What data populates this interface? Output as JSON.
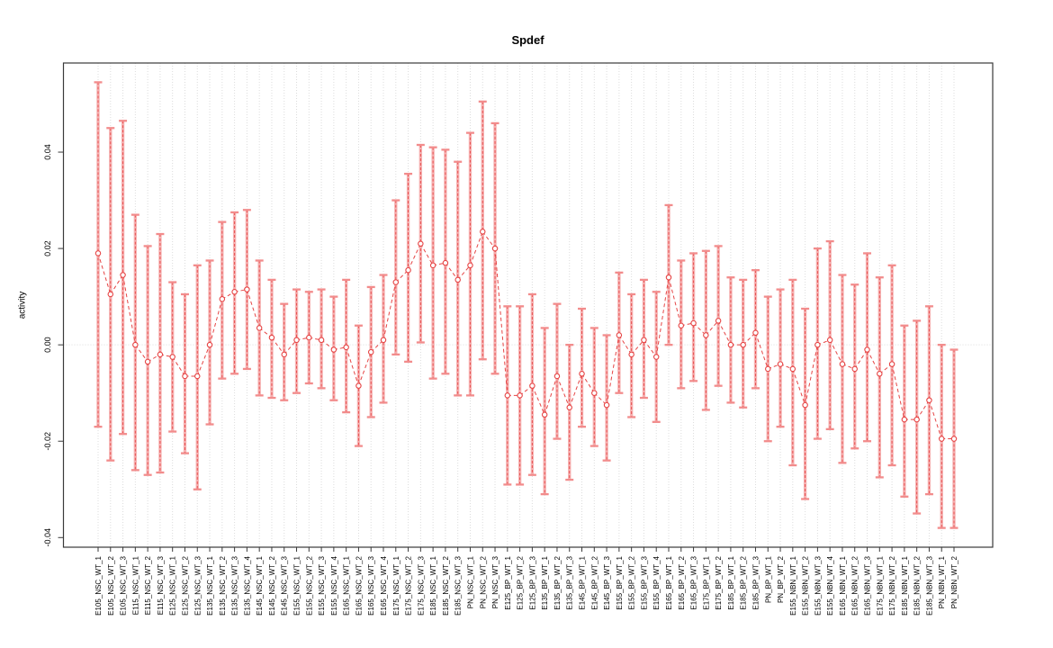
{
  "window": {
    "background": "#ffffff"
  },
  "chart_data": {
    "type": "scatter",
    "title": "Spdef",
    "xlabel": "",
    "ylabel": "activity",
    "legend": "none",
    "grid": "vertical dotted line per category; horizontal dotted line at y=0",
    "marker": "open-circle",
    "line_style": "dashed",
    "error_bars": true,
    "ylim": [
      -0.042,
      0.0585
    ],
    "yticks": [
      -0.04,
      -0.02,
      0,
      0.02,
      0.04
    ],
    "ytick_labels": [
      "-0.04",
      "-0.02",
      "0.00",
      "0.02",
      "0.04"
    ],
    "categories": [
      "E105_NSC_WT_1",
      "E105_NSC_WT_2",
      "E105_NSC_WT_3",
      "E115_NSC_WT_1",
      "E115_NSC_WT_2",
      "E115_NSC_WT_3",
      "E125_NSC_WT_1",
      "E125_NSC_WT_2",
      "E125_NSC_WT_3",
      "E135_NSC_WT_1",
      "E135_NSC_WT_2",
      "E135_NSC_WT_3",
      "E135_NSC_WT_4",
      "E145_NSC_WT_1",
      "E145_NSC_WT_2",
      "E145_NSC_WT_3",
      "E155_NSC_WT_1",
      "E155_NSC_WT_2",
      "E155_NSC_WT_3",
      "E155_NSC_WT_4",
      "E165_NSC_WT_1",
      "E165_NSC_WT_2",
      "E165_NSC_WT_3",
      "E165_NSC_WT_4",
      "E175_NSC_WT_1",
      "E175_NSC_WT_2",
      "E175_NSC_WT_3",
      "E185_NSC_WT_1",
      "E185_NSC_WT_2",
      "E185_NSC_WT_3",
      "PN_NSC_WT_1",
      "PN_NSC_WT_2",
      "PN_NSC_WT_3",
      "E125_BP_WT_1",
      "E125_BP_WT_2",
      "E125_BP_WT_3",
      "E135_BP_WT_1",
      "E135_BP_WT_2",
      "E135_BP_WT_3",
      "E145_BP_WT_1",
      "E145_BP_WT_2",
      "E145_BP_WT_3",
      "E155_BP_WT_1",
      "E155_BP_WT_2",
      "E155_BP_WT_3",
      "E155_BP_WT_4",
      "E165_BP_WT_1",
      "E165_BP_WT_2",
      "E165_BP_WT_3",
      "E175_BP_WT_1",
      "E175_BP_WT_2",
      "E185_BP_WT_1",
      "E185_BP_WT_2",
      "E185_BP_WT_3",
      "PN_BP_WT_1",
      "PN_BP_WT_2",
      "E155_NBN_WT_1",
      "E155_NBN_WT_2",
      "E155_NBN_WT_3",
      "E155_NBN_WT_4",
      "E165_NBN_WT_1",
      "E165_NBN_WT_2",
      "E165_NBN_WT_3",
      "E175_NBN_WT_1",
      "E175_NBN_WT_2",
      "E185_NBN_WT_1",
      "E185_NBN_WT_2",
      "E185_NBN_WT_3",
      "PN_NBN_WT_1",
      "PN_NBN_WT_2"
    ],
    "series": [
      {
        "name": "activity",
        "values": [
          0.019,
          0.0105,
          0.0145,
          0,
          -0.0035,
          -0.002,
          -0.0025,
          -0.0065,
          -0.0065,
          0,
          0.0095,
          0.011,
          0.0115,
          0.0035,
          0.0015,
          -0.002,
          0.001,
          0.0015,
          0.001,
          -0.001,
          -0.0005,
          -0.0085,
          -0.0015,
          0.001,
          0.013,
          0.0155,
          0.021,
          0.0165,
          0.017,
          0.0135,
          0.0165,
          0.0235,
          0.02,
          -0.0105,
          -0.0105,
          -0.0085,
          -0.0145,
          -0.0065,
          -0.013,
          -0.006,
          -0.01,
          -0.0125,
          0.002,
          -0.002,
          0.001,
          -0.0025,
          0.014,
          0.004,
          0.0045,
          0.002,
          0.005,
          0,
          0,
          0.0025,
          -0.005,
          -0.004,
          -0.005,
          -0.0125,
          0,
          0.001,
          -0.004,
          -0.005,
          -0.001,
          -0.006,
          -0.004,
          -0.0155,
          -0.0155,
          -0.0115,
          -0.0195,
          -0.0195
        ],
        "error_low": [
          -0.017,
          -0.024,
          -0.0185,
          -0.026,
          -0.027,
          -0.0265,
          -0.018,
          -0.0225,
          -0.03,
          -0.0165,
          -0.007,
          -0.006,
          -0.005,
          -0.0105,
          -0.011,
          -0.0115,
          -0.01,
          -0.008,
          -0.009,
          -0.0115,
          -0.014,
          -0.021,
          -0.015,
          -0.012,
          -0.002,
          -0.0035,
          0.0005,
          -0.007,
          -0.006,
          -0.0105,
          -0.0105,
          -0.003,
          -0.006,
          -0.029,
          -0.029,
          -0.027,
          -0.031,
          -0.0195,
          -0.028,
          -0.017,
          -0.021,
          -0.024,
          -0.01,
          -0.015,
          -0.011,
          -0.016,
          0,
          -0.009,
          -0.0075,
          -0.0135,
          -0.0085,
          -0.012,
          -0.013,
          -0.009,
          -0.02,
          -0.017,
          -0.025,
          -0.032,
          -0.0195,
          -0.0175,
          -0.0245,
          -0.0215,
          -0.02,
          -0.0275,
          -0.025,
          -0.0315,
          -0.035,
          -0.031,
          -0.038,
          -0.038
        ],
        "error_high": [
          0.0545,
          0.045,
          0.0465,
          0.027,
          0.0205,
          0.023,
          0.013,
          0.0105,
          0.0165,
          0.0175,
          0.0255,
          0.0275,
          0.028,
          0.0175,
          0.0135,
          0.0085,
          0.0115,
          0.011,
          0.0115,
          0.01,
          0.0135,
          0.004,
          0.012,
          0.0145,
          0.03,
          0.0355,
          0.0415,
          0.041,
          0.0405,
          0.038,
          0.044,
          0.0505,
          0.046,
          0.008,
          0.008,
          0.0105,
          0.0035,
          0.0085,
          0,
          0.0075,
          0.0035,
          0.002,
          0.015,
          0.0105,
          0.0135,
          0.011,
          0.029,
          0.0175,
          0.019,
          0.0195,
          0.0205,
          0.014,
          0.0135,
          0.0155,
          0.01,
          0.0115,
          0.0135,
          0.0075,
          0.02,
          0.0215,
          0.0145,
          0.0125,
          0.019,
          0.014,
          0.0165,
          0.004,
          0.005,
          0.008,
          0,
          -0.001
        ]
      }
    ],
    "colors": {
      "error_band": "#f5a6a6",
      "error_cap": "#f28c8c",
      "line": "#e64545",
      "marker": "#e64545",
      "gridline": "#dcdcdc",
      "axis": "#3a3a3a",
      "text": "#000000"
    }
  }
}
